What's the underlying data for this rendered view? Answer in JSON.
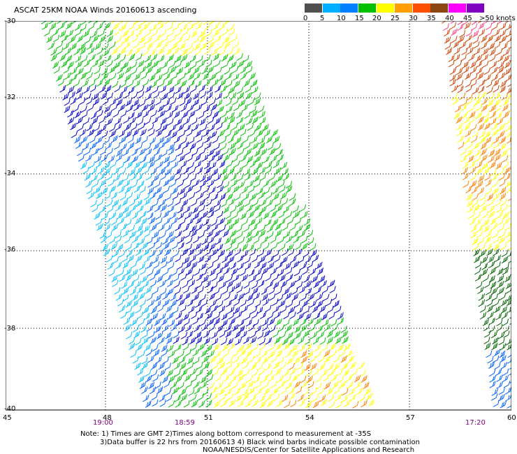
{
  "title": "ASCAT 25KM NOAA Winds 20160613 ascending",
  "colorbar": {
    "labels": [
      "0",
      "5",
      "10",
      "15",
      "20",
      "25",
      "30",
      "35",
      "40",
      "45",
      ">50 knots"
    ],
    "colors": [
      "#505050",
      "#00b0ff",
      "#0080ff",
      "#00c000",
      "#ffff00",
      "#ffa000",
      "#ff5000",
      "#8b4513",
      "#ff00ff",
      "#8000c0"
    ]
  },
  "lat_labels": [
    "-30",
    "-32",
    "-34",
    "-36",
    "-38",
    "-40"
  ],
  "lon_labels": [
    "45",
    "48",
    "51",
    "54",
    "57",
    "60"
  ],
  "time_labels": [
    "19:00",
    "18:59",
    "17:20"
  ],
  "notes": [
    "Note: 1) Times are GMT 2)Times along bottom correspond to measurement at -35S",
    "3)Data buffer is 22 hrs from 20160613 4) Black wind barbs indicate possible contamination",
    "NOAA/NESDIS/Center for Satellite Applications and Research"
  ],
  "legend_colors": {
    "navy": "#0000c8",
    "blue": "#0060ff",
    "cyan": "#00c0ff",
    "green": "#00c000",
    "dark_green": "#006000",
    "yellow": "#ffff00",
    "orange": "#ff8000",
    "dark_orange": "#d04000",
    "pink": "#ff4080"
  }
}
